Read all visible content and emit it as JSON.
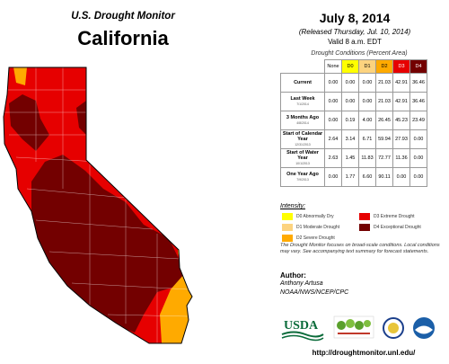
{
  "header": {
    "org_title": "U.S. Drought Monitor",
    "state_title": "California"
  },
  "release": {
    "date": "July 8, 2014",
    "released": "(Released Thursday, Jul. 10, 2014)",
    "valid": "Valid 8 a.m. EDT"
  },
  "table": {
    "title": "Drought Conditions (Percent Area)",
    "columns": [
      {
        "label": "None",
        "color": "#ffffff"
      },
      {
        "label": "D0",
        "color": "#ffff00"
      },
      {
        "label": "D1",
        "color": "#fcd37f"
      },
      {
        "label": "D2",
        "color": "#ffaa00"
      },
      {
        "label": "D3",
        "color": "#e60000"
      },
      {
        "label": "D4",
        "color": "#730000"
      }
    ],
    "rows": [
      {
        "label": "Current",
        "sub": "",
        "values": [
          "0.00",
          "0.00",
          "0.00",
          "21.03",
          "42.91",
          "36.46"
        ]
      },
      {
        "label": "Last Week",
        "sub": "7/1/2014",
        "values": [
          "0.00",
          "0.00",
          "0.00",
          "21.03",
          "42.91",
          "36.46"
        ]
      },
      {
        "label": "3 Months Ago",
        "sub": "4/8/2014",
        "values": [
          "0.00",
          "0.19",
          "4.00",
          "26.45",
          "45.23",
          "23.49"
        ]
      },
      {
        "label": "Start of Calendar Year",
        "sub": "12/31/2013",
        "values": [
          "2.64",
          "3.14",
          "6.71",
          "59.94",
          "27.93",
          "0.00"
        ]
      },
      {
        "label": "Start of Water Year",
        "sub": "10/1/2013",
        "values": [
          "2.63",
          "1.45",
          "11.83",
          "72.77",
          "11.36",
          "0.00"
        ]
      },
      {
        "label": "One Year Ago",
        "sub": "7/9/2013",
        "values": [
          "0.00",
          "1.77",
          "6.60",
          "90.11",
          "0.00",
          "0.00"
        ]
      }
    ]
  },
  "legend": {
    "title": "Intensity:",
    "items": [
      {
        "label": "D0 Abnormally Dry",
        "color": "#ffff00"
      },
      {
        "label": "D3 Extreme Drought",
        "color": "#e60000"
      },
      {
        "label": "D1 Moderate Drought",
        "color": "#fcd37f"
      },
      {
        "label": "D4 Exceptional Drought",
        "color": "#730000"
      },
      {
        "label": "D2 Severe Drought",
        "color": "#ffaa00"
      }
    ]
  },
  "note": "The Drought Monitor focuses on broad-scale conditions. Local conditions may vary. See accompanying text summary for forecast statements.",
  "author": {
    "heading": "Author:",
    "name": "Anthony Artusa",
    "org": "NOAA/NWS/NCEP/CPC"
  },
  "logos": {
    "usda": "USDA"
  },
  "url": "http://droughtmonitor.unl.edu/",
  "colors": {
    "d1": "#fcd37f",
    "d2": "#ffaa00",
    "d3": "#e60000",
    "d4": "#730000",
    "county_line": "#ffffff",
    "outline": "#000000"
  }
}
